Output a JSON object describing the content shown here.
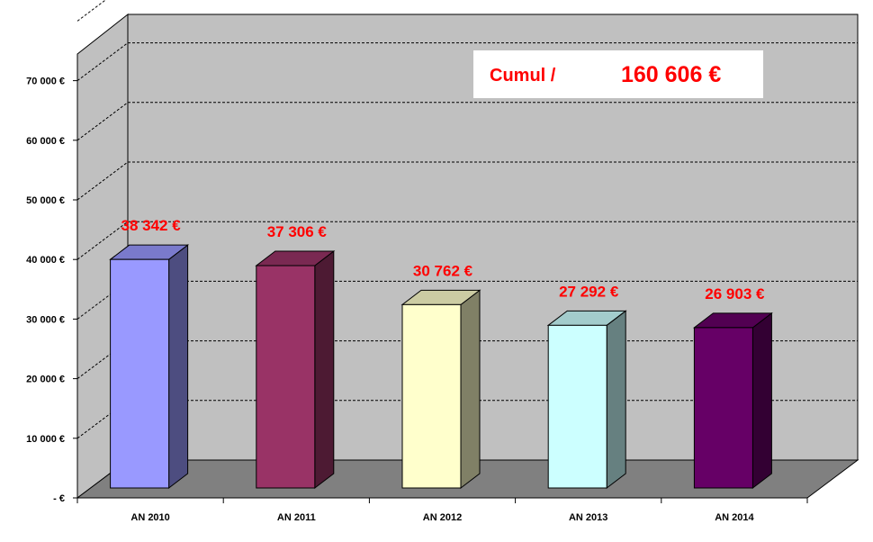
{
  "chart_data": {
    "type": "bar",
    "categories": [
      "AN 2010",
      "AN 2011",
      "AN 2012",
      "AN 2013",
      "AN 2014"
    ],
    "values": [
      38342,
      37306,
      30762,
      27292,
      26903
    ],
    "data_labels": [
      "38 342 €",
      "37 306 €",
      "30 762 €",
      "27 292 €",
      "26 903 €"
    ],
    "bar_colors": [
      "#9999ff",
      "#993366",
      "#ffffcc",
      "#ccffff",
      "#660066"
    ],
    "y_ticks": [
      0,
      10000,
      20000,
      30000,
      40000,
      50000,
      60000,
      70000
    ],
    "y_tick_labels": [
      "-   €",
      "10 000 €",
      "20 000 €",
      "30 000 €",
      "40 000 €",
      "50 000 €",
      "60 000 €",
      "70 000 €"
    ],
    "ylim": [
      0,
      70000
    ],
    "grid": true,
    "style": "3d-column",
    "wall_color": "#c0c0c0",
    "floor_color": "#808080",
    "label_color": "#ff0000",
    "annotation": {
      "label": "Cumul /",
      "value": "160 606 €"
    }
  }
}
